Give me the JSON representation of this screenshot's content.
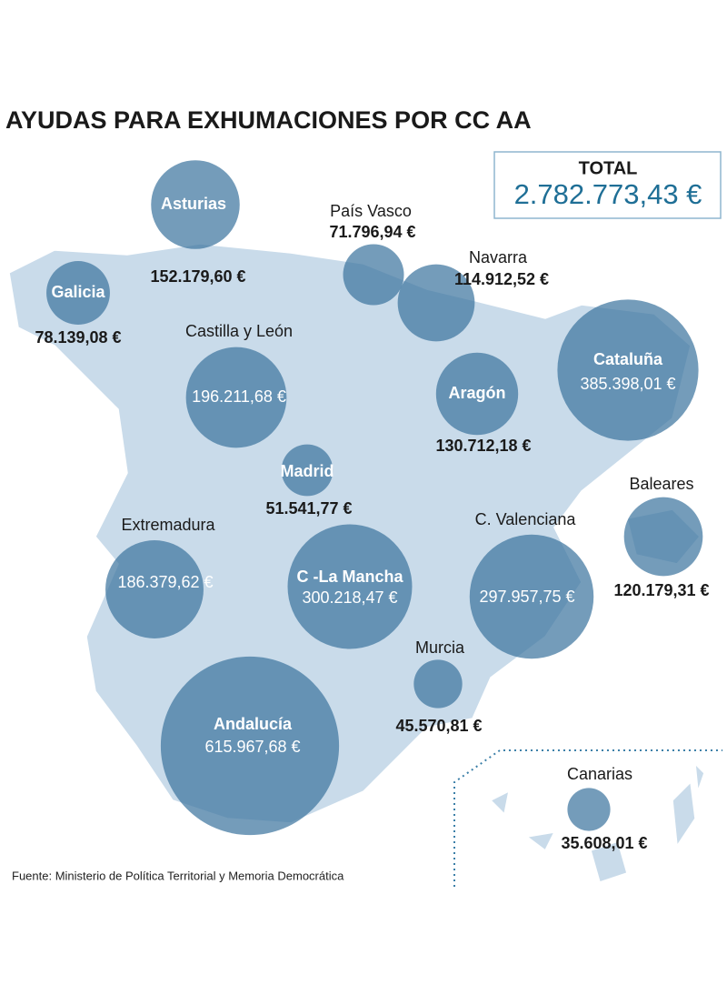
{
  "title": "AYUDAS PARA EXHUMACIONES POR CC AA",
  "total": {
    "label": "TOTAL",
    "value": "2.782.773,43 €"
  },
  "regions": [
    {
      "name": "Asturias",
      "value": 152179.6,
      "value_label": "152.179,60 €"
    },
    {
      "name": "Galicia",
      "value": 78139.08,
      "value_label": "78.139,08 €"
    },
    {
      "name": "País Vasco",
      "value": 71796.94,
      "value_label": "71.796,94 €"
    },
    {
      "name": "Navarra",
      "value": 114912.52,
      "value_label": "114.912,52 €"
    },
    {
      "name": "Castilla y León",
      "value": 196211.68,
      "value_label": "196.211,68 €"
    },
    {
      "name": "Aragón",
      "value": 130712.18,
      "value_label": "130.712,18 €"
    },
    {
      "name": "Cataluña",
      "value": 385398.01,
      "value_label": "385.398,01 €"
    },
    {
      "name": "Madrid",
      "value": 51541.77,
      "value_label": "51.541,77 €"
    },
    {
      "name": "Baleares",
      "value": 120179.31,
      "value_label": "120.179,31 €"
    },
    {
      "name": "Extremadura",
      "value": 186379.62,
      "value_label": "186.379,62 €"
    },
    {
      "name": "C. Valenciana",
      "value": 297957.75,
      "value_label": "297.957,75 €"
    },
    {
      "name": "C -La Mancha",
      "value": 300218.47,
      "value_label": "300.218,47 €"
    },
    {
      "name": "Murcia",
      "value": 45570.81,
      "value_label": "45.570,81 €"
    },
    {
      "name": "Andalucía",
      "value": 615967.68,
      "value_label": "615.967,68 €"
    },
    {
      "name": "Canarias",
      "value": 35608.01,
      "value_label": "35.608,01 €"
    }
  ],
  "source": "Fuente: Ministerio de Política Territorial y Memoria Democrática"
}
